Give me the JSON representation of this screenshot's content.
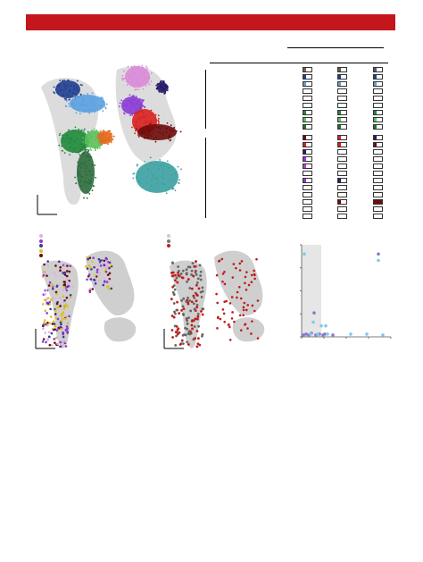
{
  "banner": {
    "color": "#c4161c"
  },
  "panel_a": {
    "clusters": [
      {
        "color": "#1f3f8f"
      },
      {
        "color": "#5aa0e0"
      },
      {
        "color": "#1f8a3a"
      },
      {
        "color": "#5cc05a"
      },
      {
        "color": "#e36a1c"
      },
      {
        "color": "#2a6a3a"
      },
      {
        "color": "#d98ad8"
      },
      {
        "color": "#8a3bd6"
      },
      {
        "color": "#2a1a6a"
      },
      {
        "color": "#d82020"
      },
      {
        "color": "#6e0c0c"
      },
      {
        "color": "#3aa0a0"
      }
    ]
  },
  "panel_b": {
    "upper_rows": [
      [
        "#8a5a3a",
        "#6a5a4a",
        "#4a5a6a"
      ],
      [
        "#1f3f8f",
        "#1f3f8f",
        "#1f3f8f"
      ],
      [
        "#5aa0e0",
        "#5aa0e0",
        "#5aa0e0"
      ],
      [
        "",
        "",
        ""
      ],
      [
        "",
        "",
        ""
      ],
      [
        "",
        "",
        ""
      ],
      [
        "#1f8a3a",
        "#1f8a3a",
        "#1f8a3a"
      ],
      [
        "#5cc05a",
        "#5cc05a",
        "#5cc05a"
      ],
      [
        "#2a6a3a",
        "#2a6a3a",
        "#2a6a3a"
      ]
    ],
    "lower_rows": [
      [
        "#6e0c0c",
        "#d82020",
        "#2a1a6a"
      ],
      [
        "#d82020",
        "#d82020",
        "#6e0c0c"
      ],
      [
        "#2a1a6a",
        "",
        ""
      ],
      [
        "#8a3bd6",
        "",
        ""
      ],
      [
        "#c03ad0",
        "",
        ""
      ],
      [
        "",
        "",
        ""
      ],
      [
        "#8a3bd6",
        "#2a1a6a",
        ""
      ],
      [
        "",
        "",
        ""
      ],
      [
        "",
        "",
        ""
      ],
      [
        "",
        "#6e0c0c",
        "#6e0c0c"
      ],
      [
        "",
        "",
        ""
      ],
      [
        "",
        "",
        ""
      ]
    ]
  },
  "panel_c": {
    "legend": [
      {
        "color": "#e0b0e0"
      },
      {
        "color": "#8a3bd6"
      },
      {
        "color": "#3a3a9a"
      },
      {
        "color": "#e0c020"
      },
      {
        "color": "#6e0c0c"
      }
    ]
  },
  "panel_d": {
    "legend": [
      {
        "color": "#cccccc"
      },
      {
        "color": "#777777"
      },
      {
        "color": "#c41a1a"
      }
    ]
  },
  "chart_data": {
    "type": "scatter",
    "xlim": [
      0,
      10
    ],
    "ylim": [
      0,
      10
    ],
    "shaded_x_range": [
      0,
      2.2
    ],
    "series": [
      {
        "color": "#8a7ac8",
        "x": [
          0.2,
          0.5,
          0.8,
          1.1,
          1.6,
          2.0,
          2.4,
          3.5,
          8.6,
          1.4,
          2.6
        ],
        "y": [
          0.2,
          0.3,
          0.2,
          0.4,
          0.2,
          0.3,
          0.2,
          0.2,
          9.0,
          2.6,
          0.3
        ]
      },
      {
        "color": "#7fcbe8",
        "x": [
          0.3,
          1.0,
          1.3,
          1.8,
          2.2,
          2.9,
          5.5,
          7.3,
          9.1,
          8.6,
          2.7
        ],
        "y": [
          9.0,
          0.3,
          1.6,
          0.3,
          1.2,
          0.3,
          0.3,
          0.3,
          0.2,
          8.3,
          1.2
        ]
      }
    ]
  }
}
